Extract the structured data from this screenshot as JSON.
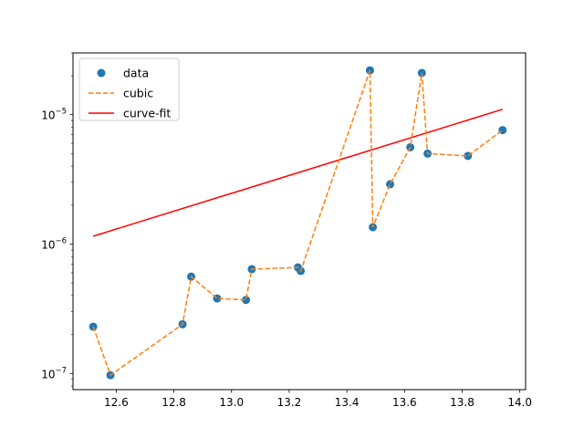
{
  "chart_data": {
    "type": "scatter",
    "title": "",
    "xlabel": "",
    "ylabel": "",
    "xlim": [
      12.45,
      14.02
    ],
    "ylim": [
      7.5e-08,
      3e-05
    ],
    "yscale": "log",
    "grid": false,
    "legend_placement": "top-left",
    "x_ticks": [
      12.6,
      12.8,
      13.0,
      13.2,
      13.4,
      13.6,
      13.8,
      14.0
    ],
    "x_tick_labels": [
      "12.6",
      "12.8",
      "13.0",
      "13.2",
      "13.4",
      "13.6",
      "13.8",
      "14.0"
    ],
    "y_ticks": [
      1e-07,
      1e-06,
      1e-05
    ],
    "y_tick_labels": [
      {
        "base": "10",
        "exp": "−7"
      },
      {
        "base": "10",
        "exp": "−6"
      },
      {
        "base": "10",
        "exp": "−5"
      }
    ],
    "series": [
      {
        "name": "data",
        "style": "markers",
        "color": "#1f77b4",
        "x": [
          12.52,
          12.58,
          12.83,
          12.86,
          12.95,
          13.05,
          13.07,
          13.23,
          13.24,
          13.48,
          13.49,
          13.55,
          13.62,
          13.66,
          13.68,
          13.82,
          13.94
        ],
        "y": [
          2.3e-07,
          9.7e-08,
          2.4e-07,
          5.6e-07,
          3.8e-07,
          3.7e-07,
          6.4e-07,
          6.6e-07,
          6.2e-07,
          2.2e-05,
          1.35e-06,
          2.9e-06,
          5.6e-06,
          2.1e-05,
          5e-06,
          4.8e-06,
          7.6e-06
        ]
      },
      {
        "name": "cubic",
        "style": "dashed",
        "color": "#ff7f0e",
        "x": [
          12.52,
          12.58,
          12.83,
          12.86,
          12.95,
          13.05,
          13.07,
          13.23,
          13.24,
          13.48,
          13.49,
          13.55,
          13.62,
          13.66,
          13.68,
          13.82,
          13.94
        ],
        "y": [
          2.3e-07,
          9.7e-08,
          2.4e-07,
          5.6e-07,
          3.8e-07,
          3.7e-07,
          6.4e-07,
          6.6e-07,
          6.2e-07,
          2.2e-05,
          1.35e-06,
          2.9e-06,
          5.6e-06,
          2.1e-05,
          5e-06,
          4.8e-06,
          7.6e-06
        ]
      },
      {
        "name": "curve-fit",
        "style": "line",
        "color": "#ff0000",
        "x": [
          12.52,
          13.94
        ],
        "y": [
          1.15e-06,
          1.1e-05
        ]
      }
    ]
  }
}
